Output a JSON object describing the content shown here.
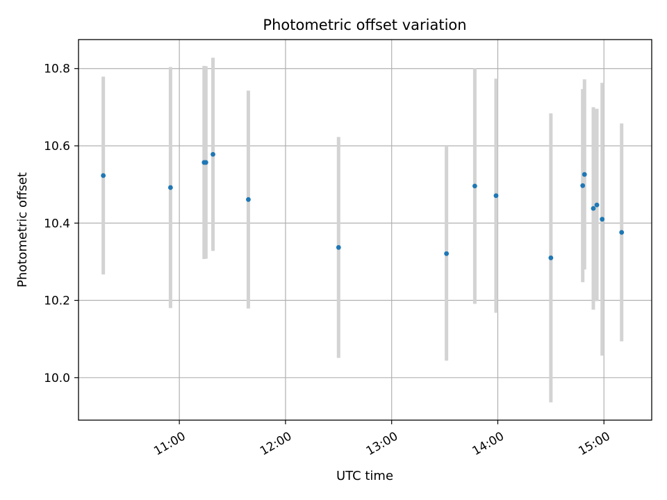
{
  "chart_data": {
    "type": "scatter",
    "title": "Photometric offset variation",
    "xlabel": "UTC time",
    "ylabel": "Photometric offset",
    "x_ticks": [
      "11:00",
      "12:00",
      "13:00",
      "14:00",
      "15:00"
    ],
    "y_ticks": [
      "10.0",
      "10.2",
      "10.4",
      "10.6",
      "10.8"
    ],
    "xlim": [
      "10:03",
      "15:27"
    ],
    "ylim": [
      9.89,
      10.875
    ],
    "grid": true,
    "colors": {
      "marker": "#1f77b4",
      "errorbar": "#d3d3d3",
      "grid": "#b0b0b0"
    },
    "points": [
      {
        "x": "10:17",
        "y": 10.523,
        "err": 0.256
      },
      {
        "x": "10:55",
        "y": 10.492,
        "err": 0.312
      },
      {
        "x": "11:14",
        "y": 10.557,
        "err": 0.25
      },
      {
        "x": "11:15",
        "y": 10.557,
        "err": 0.249
      },
      {
        "x": "11:19",
        "y": 10.578,
        "err": 0.25
      },
      {
        "x": "11:39",
        "y": 10.461,
        "err": 0.282
      },
      {
        "x": "12:30",
        "y": 10.337,
        "err": 0.286
      },
      {
        "x": "13:31",
        "y": 10.321,
        "err": 0.277
      },
      {
        "x": "13:47",
        "y": 10.496,
        "err": 0.305
      },
      {
        "x": "13:59",
        "y": 10.471,
        "err": 0.303
      },
      {
        "x": "14:30",
        "y": 10.31,
        "err": 0.374
      },
      {
        "x": "14:48",
        "y": 10.497,
        "err": 0.25
      },
      {
        "x": "14:49",
        "y": 10.526,
        "err": 0.246
      },
      {
        "x": "14:54",
        "y": 10.438,
        "err": 0.262
      },
      {
        "x": "14:56",
        "y": 10.447,
        "err": 0.249
      },
      {
        "x": "14:59",
        "y": 10.41,
        "err": 0.353
      },
      {
        "x": "15:10",
        "y": 10.376,
        "err": 0.282
      }
    ]
  }
}
